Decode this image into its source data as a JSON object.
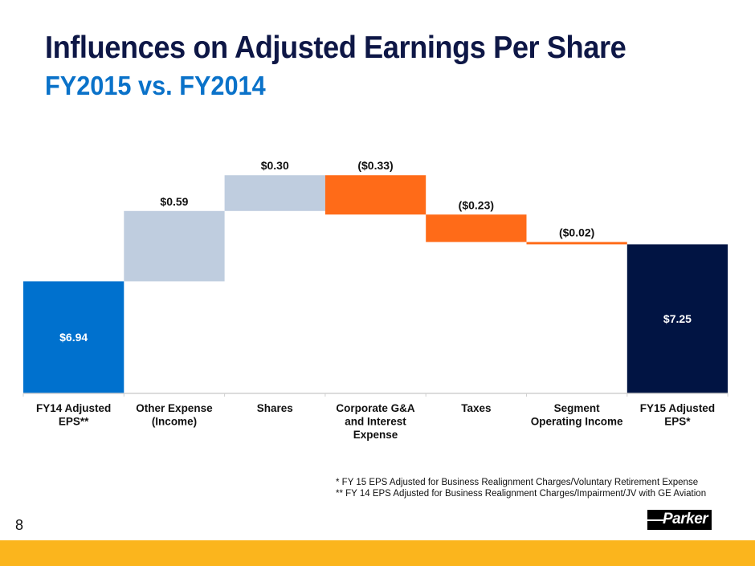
{
  "slide": {
    "title": "Influences on Adjusted Earnings Per Share",
    "subtitle": "FY2015 vs. FY2014",
    "page_number": "8",
    "logo_text": "Parker",
    "footnotes": [
      "*   FY 15 EPS Adjusted for Business Realignment Charges/Voluntary Retirement Expense",
      "**  FY 14 EPS Adjusted for Business Realignment Charges/Impairment/JV with GE Aviation"
    ],
    "colors": {
      "title": "#0e1746",
      "subtitle": "#0a72c9",
      "start_bar": "#0071ce",
      "increase": "#bfcddf",
      "decrease": "#ff6b18",
      "end_bar": "#011443",
      "footer": "#fbb51d"
    }
  },
  "chart_data": {
    "type": "bar",
    "subtype": "waterfall",
    "title": "Influences on Adjusted Earnings Per Share",
    "subtitle": "FY2015 vs. FY2014",
    "xlabel": "",
    "ylabel": "",
    "ylim": [
      6.0,
      7.6
    ],
    "grid": false,
    "legend": "none",
    "categories": [
      "FY14 Adjusted EPS**",
      "Other Expense (Income)",
      "Shares",
      "Corporate G&A and Interest Expense",
      "Taxes",
      "Segment Operating Income",
      "FY15 Adjusted EPS*"
    ],
    "category_lines": [
      [
        "FY14 Adjusted",
        "EPS**"
      ],
      [
        "Other Expense",
        "(Income)"
      ],
      [
        "Shares"
      ],
      [
        "Corporate G&A",
        "and Interest",
        "Expense"
      ],
      [
        "Taxes"
      ],
      [
        "Segment",
        "Operating Income"
      ],
      [
        "FY15 Adjusted",
        "EPS*"
      ]
    ],
    "values": [
      6.94,
      0.59,
      0.3,
      -0.33,
      -0.23,
      -0.02,
      7.25
    ],
    "kinds": [
      "total",
      "delta",
      "delta",
      "delta",
      "delta",
      "delta",
      "total"
    ],
    "labels": [
      "$6.94",
      "$0.59",
      "$0.30",
      "($0.33)",
      "($0.23)",
      "($0.02)",
      "$7.25"
    ]
  }
}
